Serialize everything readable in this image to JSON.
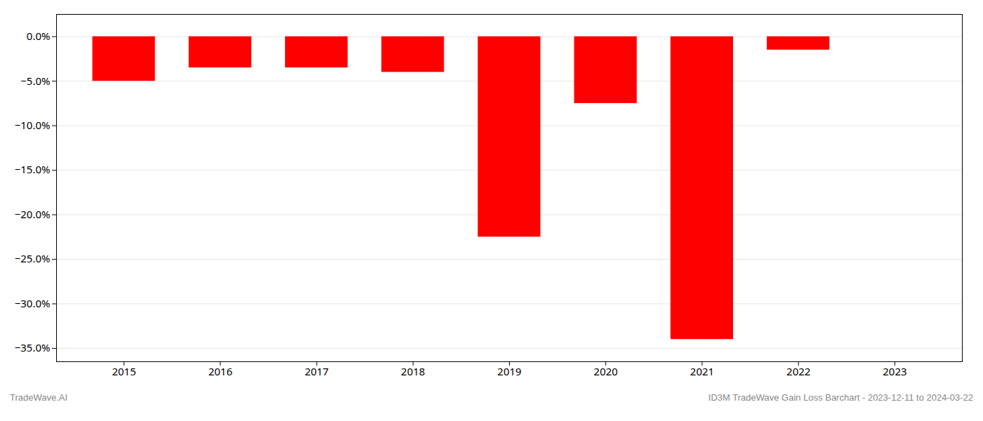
{
  "chart_data": {
    "type": "bar",
    "x": [
      2015,
      2016,
      2017,
      2018,
      2019,
      2020,
      2021,
      2022,
      2023
    ],
    "values": [
      -5.0,
      -3.5,
      -3.5,
      -4.0,
      -22.5,
      -7.5,
      -34.0,
      -1.5,
      0.0
    ],
    "color": "#ff0000",
    "xlim": [
      2014.3,
      2023.7
    ],
    "xticks": [
      2015,
      2016,
      2017,
      2018,
      2019,
      2020,
      2021,
      2022,
      2023
    ],
    "ylim": [
      -36.5,
      2.5
    ],
    "yticks": [
      {
        "value": 0.0,
        "label": "0.0%"
      },
      {
        "value": -5.0,
        "label": "−5.0%"
      },
      {
        "value": -10.0,
        "label": "−10.0%"
      },
      {
        "value": -15.0,
        "label": "−15.0%"
      },
      {
        "value": -20.0,
        "label": "−20.0%"
      },
      {
        "value": -25.0,
        "label": "−25.0%"
      },
      {
        "value": -30.0,
        "label": "−30.0%"
      },
      {
        "value": -35.0,
        "label": "−35.0%"
      }
    ],
    "grid": true,
    "annotations": [
      "TradeWave.AI",
      "ID3M TradeWave Gain Loss Barchart - 2023-12-11 to 2024-03-22"
    ]
  }
}
